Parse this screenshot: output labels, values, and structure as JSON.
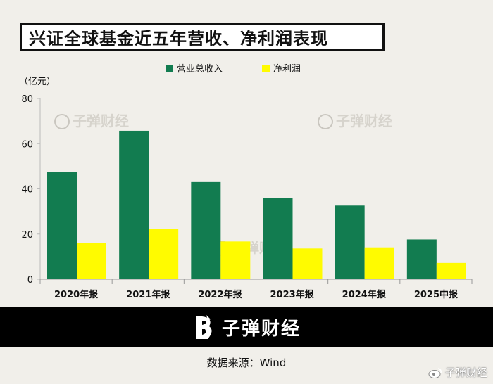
{
  "title": "兴证全球基金近五年营收、净利润表现",
  "unit_label": "（亿元）",
  "watermark": "子弹财经",
  "footer": {
    "brand": "子弹财经"
  },
  "source": "数据来源：Wind",
  "weibo_mark": "子弹财经",
  "colors": {
    "revenue": "#127c50",
    "net_profit": "#fffb00"
  },
  "icons": {
    "brand_logo": "bullet-logo-icon",
    "weibo": "weibo-icon"
  },
  "chart_data": {
    "type": "bar",
    "categories": [
      "2020年报",
      "2021年报",
      "2022年报",
      "2023年报",
      "2024年报",
      "2025中报"
    ],
    "series": [
      {
        "name": "营业总收入",
        "values": [
          47.5,
          65.7,
          43.0,
          36.0,
          32.6,
          17.6
        ]
      },
      {
        "name": "净利润",
        "values": [
          15.9,
          22.3,
          16.7,
          13.6,
          14.1,
          7.2
        ]
      }
    ],
    "ylim": [
      0,
      80
    ],
    "yticks": [
      0,
      20,
      40,
      60,
      80
    ],
    "legend_position": "top-center",
    "grid": false
  }
}
